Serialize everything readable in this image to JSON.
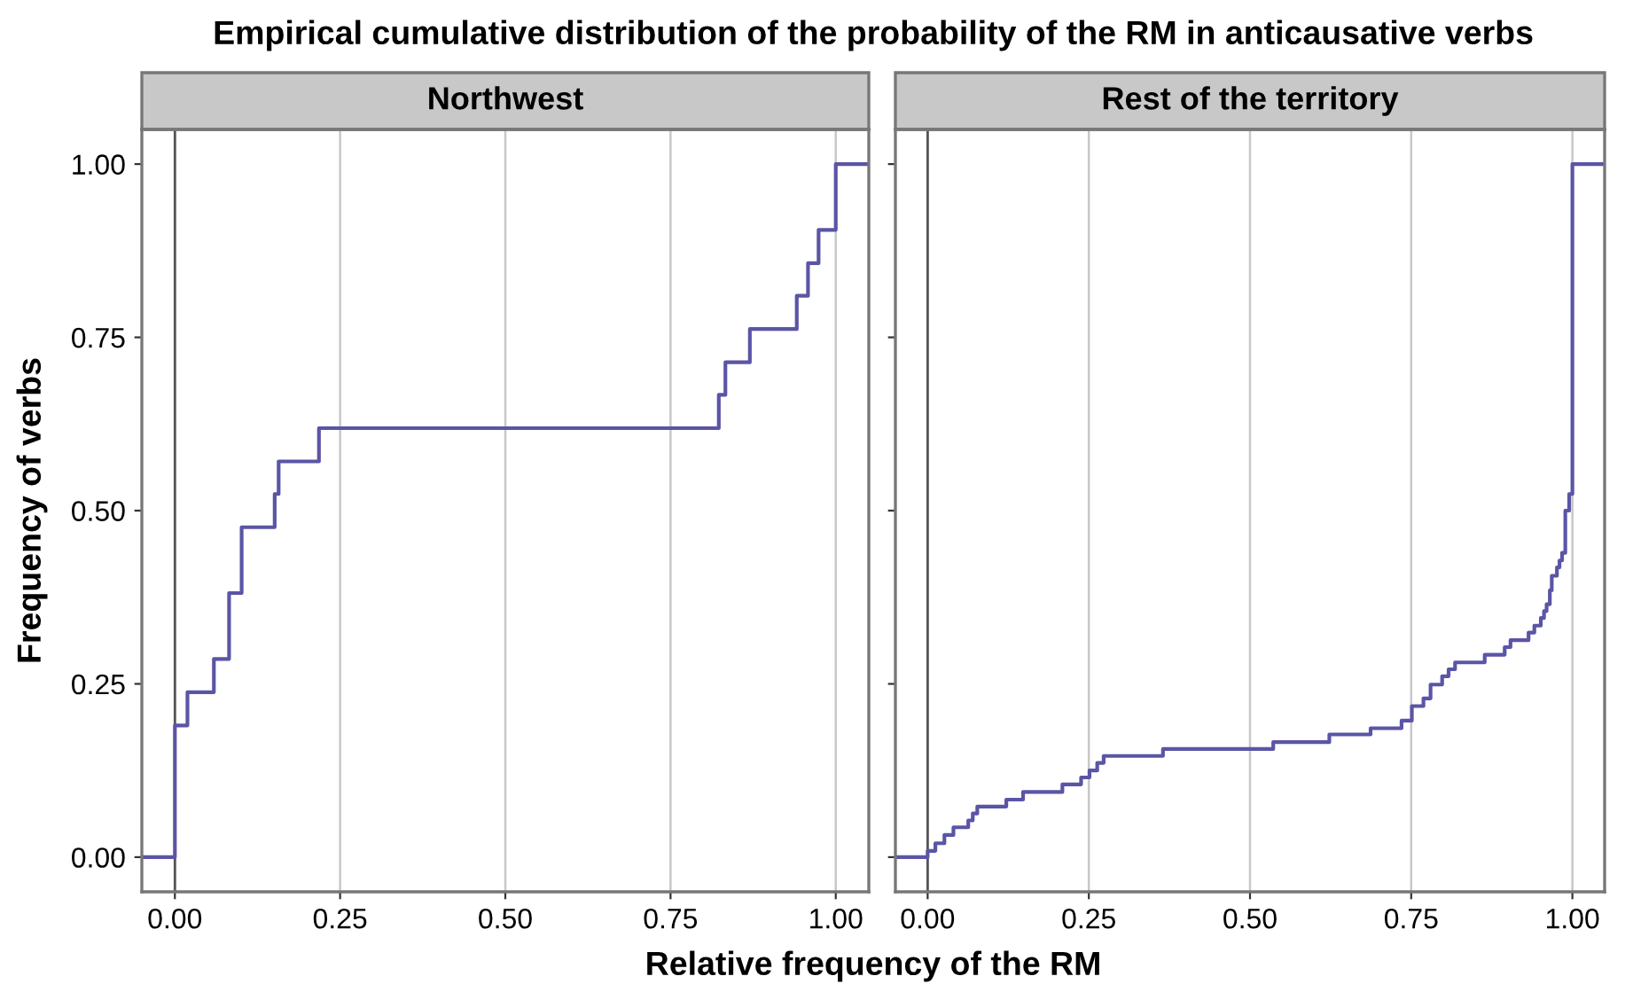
{
  "chart_data": [
    {
      "type": "step",
      "title": "Empirical cumulative distribution of the probability of the RM in anticausative verbs",
      "subtitle": "Northwest",
      "xlabel": "Relative frequency of the RM",
      "ylabel": "Frequency of verbs",
      "series": [
        {
          "color": "#5a55a5",
          "x": [
            -0.05,
            0.0,
            0.019,
            0.059,
            0.082,
            0.101,
            0.151,
            0.157,
            0.218,
            0.823,
            0.833,
            0.87,
            0.941,
            0.958,
            0.974,
            1.0,
            1.05
          ],
          "values": [
            0.0,
            0.19,
            0.238,
            0.286,
            0.381,
            0.476,
            0.524,
            0.571,
            0.619,
            0.667,
            0.714,
            0.762,
            0.81,
            0.857,
            0.905,
            1.0,
            1.0
          ]
        }
      ],
      "xlim": [
        -0.05,
        1.05
      ],
      "ylim": [
        -0.05,
        1.05
      ],
      "xticks": [
        {
          "value": 0,
          "label": "0.00"
        },
        {
          "value": 0.25,
          "label": "0.25"
        },
        {
          "value": 0.5,
          "label": "0.50"
        },
        {
          "value": 0.75,
          "label": "0.75"
        },
        {
          "value": 1,
          "label": "1.00"
        }
      ],
      "yticks": [
        {
          "value": 0,
          "label": "0.00"
        },
        {
          "value": 0.25,
          "label": "0.25"
        },
        {
          "value": 0.5,
          "label": "0.50"
        },
        {
          "value": 0.75,
          "label": "0.75"
        },
        {
          "value": 1,
          "label": "1.00"
        }
      ],
      "grid": "x",
      "ref_lines": [
        {
          "axis": "x",
          "value": 0,
          "color": "#555555"
        }
      ]
    },
    {
      "type": "step",
      "subtitle": "Rest of the territory",
      "series": [
        {
          "color": "#5a55a5",
          "x": [
            -0.05,
            0.0,
            0.012,
            0.026,
            0.04,
            0.063,
            0.07,
            0.077,
            0.122,
            0.148,
            0.209,
            0.238,
            0.251,
            0.263,
            0.273,
            0.365,
            0.536,
            0.623,
            0.687,
            0.735,
            0.751,
            0.769,
            0.78,
            0.798,
            0.808,
            0.818,
            0.864,
            0.895,
            0.904,
            0.932,
            0.941,
            0.951,
            0.956,
            0.96,
            0.965,
            0.968,
            0.976,
            0.98,
            0.984,
            0.989,
            0.995,
            1.0,
            1.05
          ],
          "values": [
            0.0,
            0.009,
            0.02,
            0.032,
            0.043,
            0.053,
            0.063,
            0.073,
            0.083,
            0.094,
            0.105,
            0.115,
            0.125,
            0.136,
            0.146,
            0.156,
            0.166,
            0.177,
            0.186,
            0.197,
            0.218,
            0.229,
            0.249,
            0.261,
            0.271,
            0.281,
            0.292,
            0.303,
            0.313,
            0.324,
            0.334,
            0.345,
            0.355,
            0.365,
            0.385,
            0.406,
            0.418,
            0.428,
            0.439,
            0.5,
            0.524,
            1.0,
            1.0
          ]
        }
      ],
      "xlim": [
        -0.05,
        1.05
      ],
      "ylim": [
        -0.05,
        1.05
      ],
      "xticks": [
        {
          "value": 0,
          "label": "0.00"
        },
        {
          "value": 0.25,
          "label": "0.25"
        },
        {
          "value": 0.5,
          "label": "0.50"
        },
        {
          "value": 0.75,
          "label": "0.75"
        },
        {
          "value": 1,
          "label": "1.00"
        }
      ],
      "tick_labels": "x",
      "grid": "x",
      "ref_lines": [
        {
          "axis": "x",
          "value": 0,
          "color": "#555555"
        }
      ]
    }
  ]
}
